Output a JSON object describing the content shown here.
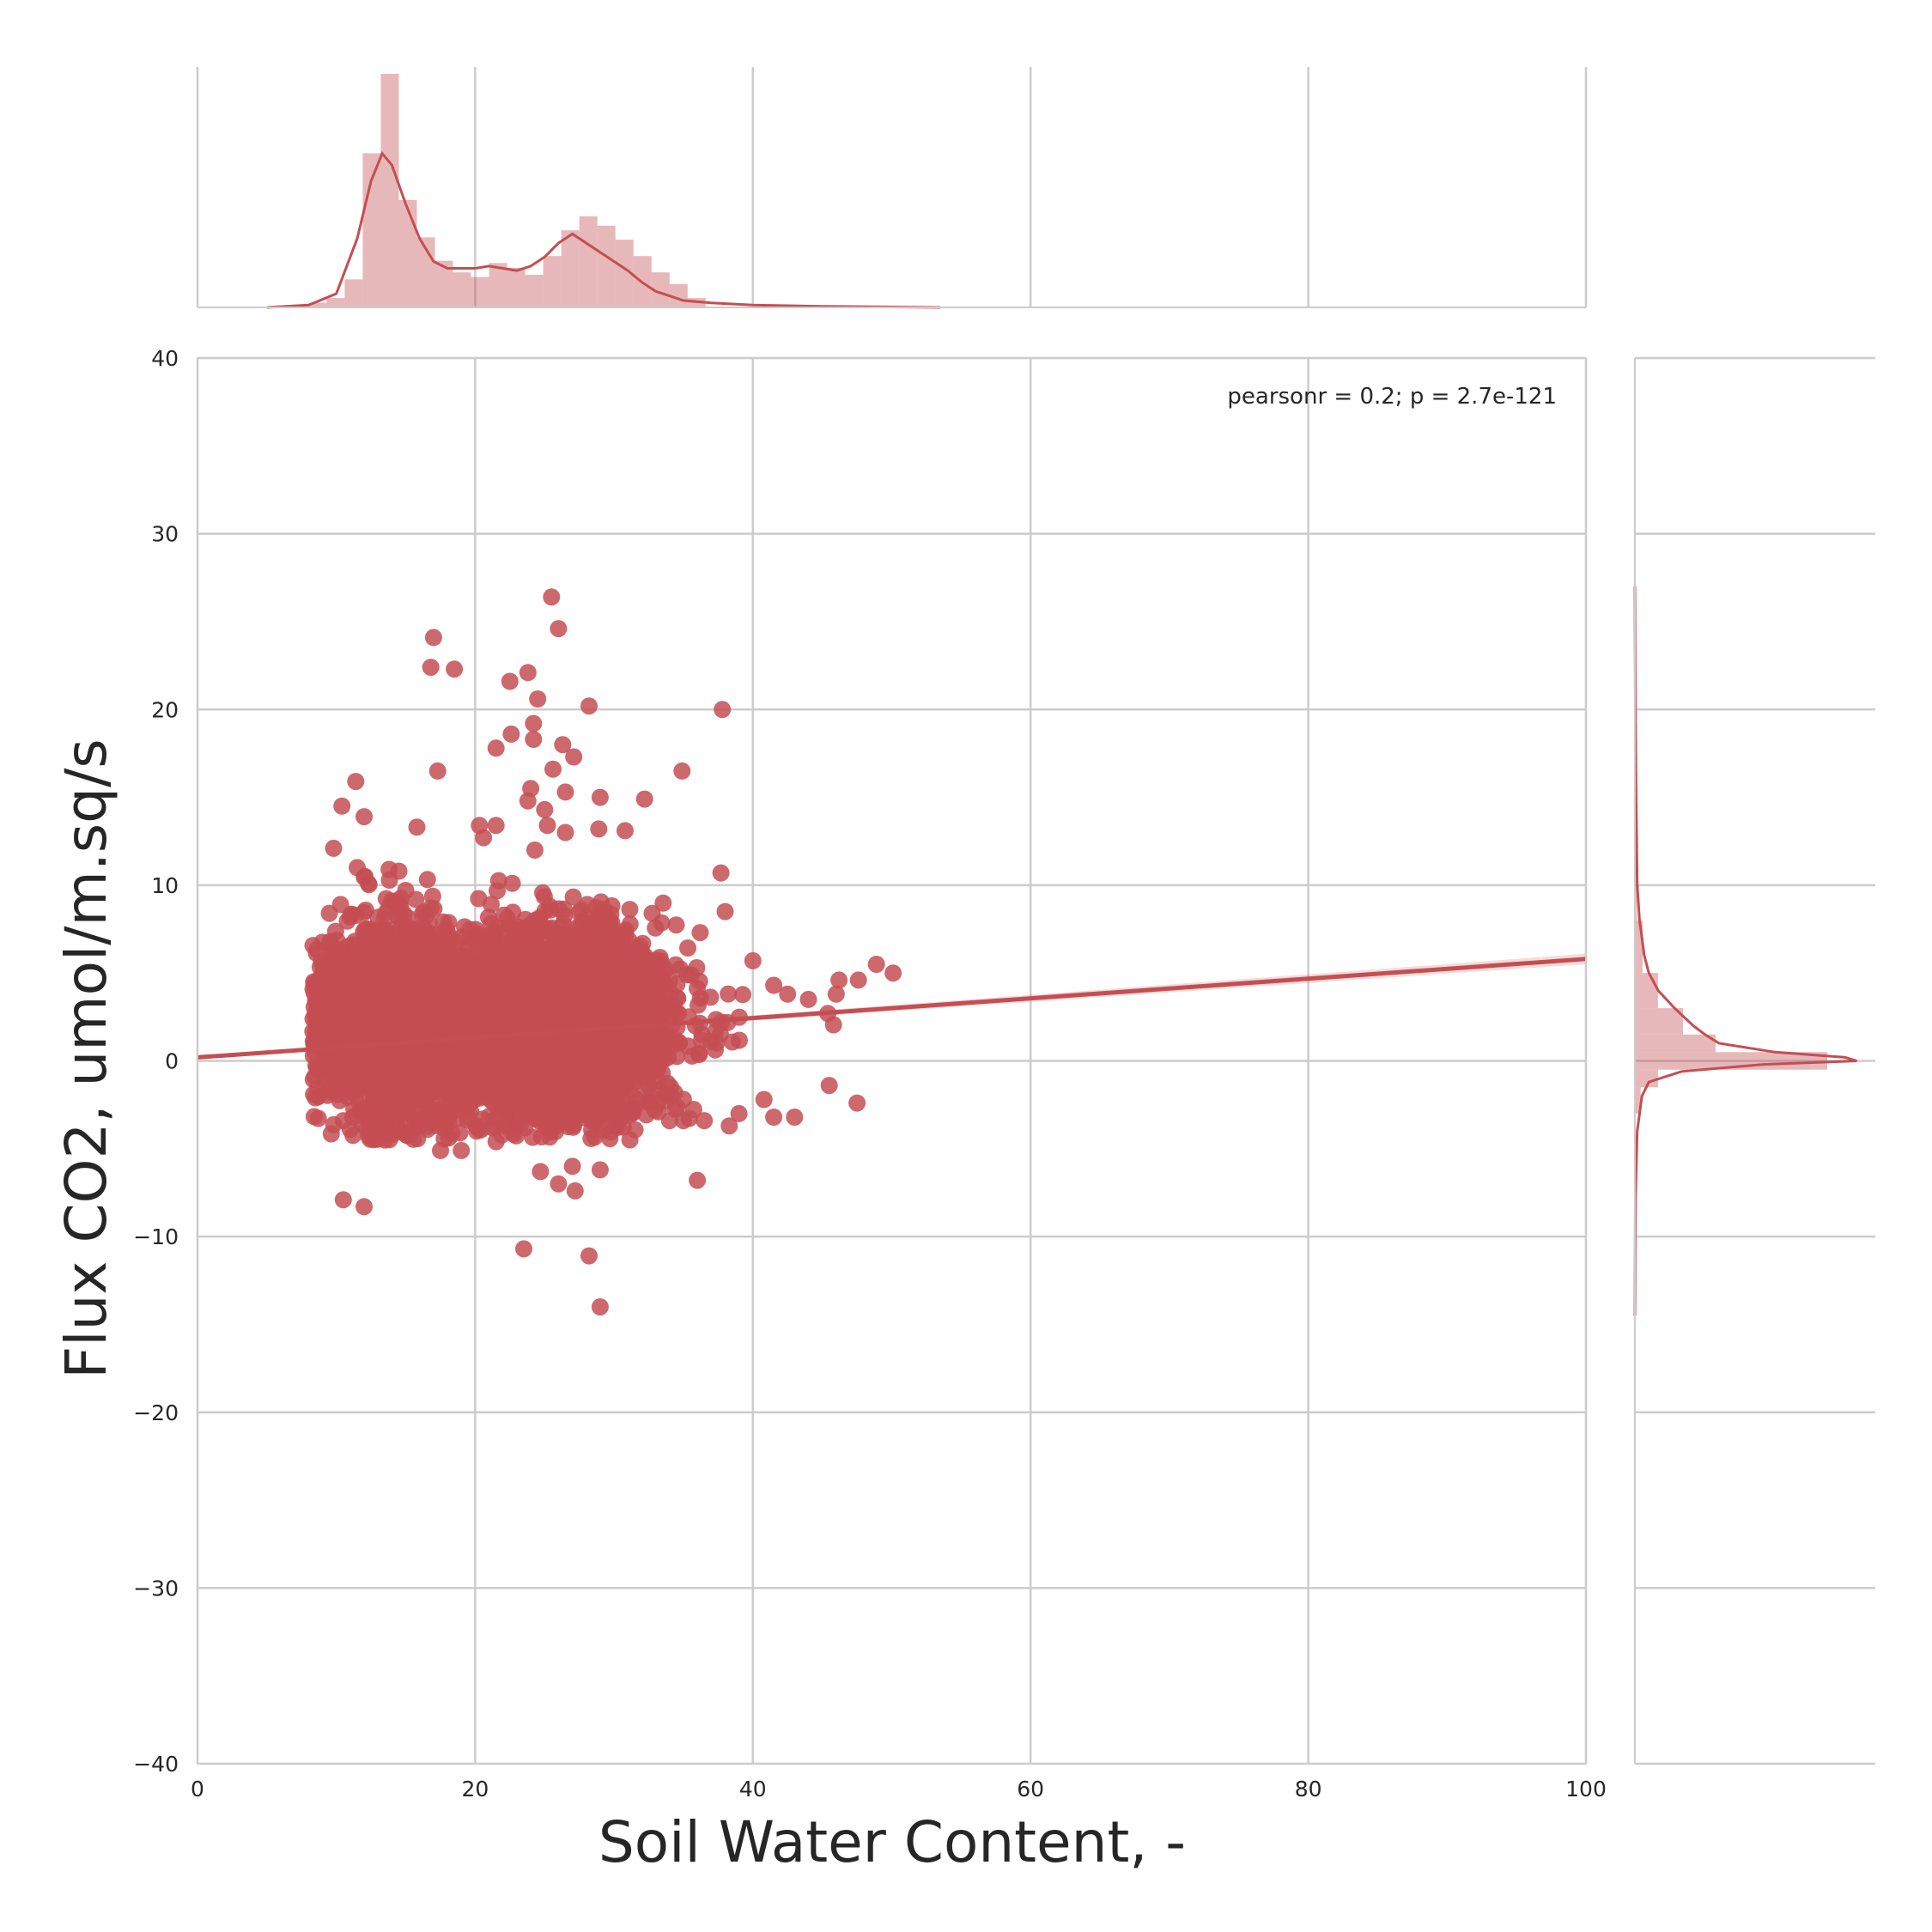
{
  "chart_data": {
    "type": "scatter",
    "subtype": "jointplot-regression",
    "xlabel": "Soil Water Content, -",
    "ylabel": "Flux CO2, umol/m.sq/s",
    "xlim": [
      0,
      100
    ],
    "ylim": [
      -40,
      40
    ],
    "xticks": [
      "0",
      "20",
      "40",
      "60",
      "80",
      "100"
    ],
    "yticks": [
      "−40",
      "−30",
      "−20",
      "−10",
      "0",
      "10",
      "20",
      "30",
      "40"
    ],
    "grid": true,
    "annotation": "pearsonr = 0.2; p = 2.7e-121",
    "color": "#c44e52",
    "regression": {
      "x": [
        0,
        100
      ],
      "y": [
        0.2,
        5.8
      ]
    },
    "outliers": [
      [
        25.5,
        26.4
      ],
      [
        26.0,
        24.6
      ],
      [
        17.0,
        24.1
      ],
      [
        16.8,
        22.4
      ],
      [
        18.5,
        22.3
      ],
      [
        22.5,
        21.6
      ],
      [
        23.8,
        22.1
      ],
      [
        24.5,
        20.6
      ],
      [
        28.2,
        20.2
      ],
      [
        37.8,
        20.0
      ],
      [
        24.2,
        19.2
      ],
      [
        22.6,
        18.6
      ],
      [
        21.5,
        17.8
      ],
      [
        24.2,
        18.3
      ],
      [
        26.3,
        18.0
      ],
      [
        27.1,
        17.3
      ],
      [
        25.6,
        16.6
      ],
      [
        17.3,
        16.5
      ],
      [
        34.9,
        16.5
      ],
      [
        11.4,
        15.9
      ],
      [
        24.0,
        15.5
      ],
      [
        26.5,
        15.3
      ],
      [
        29.0,
        15.0
      ],
      [
        32.2,
        14.9
      ],
      [
        10.4,
        14.5
      ],
      [
        23.8,
        14.8
      ],
      [
        25.0,
        14.3
      ],
      [
        12.0,
        13.9
      ],
      [
        15.8,
        13.3
      ],
      [
        20.3,
        13.4
      ],
      [
        21.5,
        13.4
      ],
      [
        25.2,
        13.4
      ],
      [
        26.5,
        13.0
      ],
      [
        28.9,
        13.2
      ],
      [
        30.8,
        13.1
      ],
      [
        20.6,
        12.7
      ],
      [
        9.8,
        12.1
      ],
      [
        24.3,
        12.0
      ],
      [
        38.0,
        8.5
      ],
      [
        37.7,
        10.7
      ],
      [
        36.2,
        7.3
      ],
      [
        11.5,
        11.0
      ],
      [
        12.3,
        10.1
      ],
      [
        14.5,
        10.8
      ],
      [
        15.0,
        9.7
      ],
      [
        13.8,
        10.9
      ],
      [
        40.0,
        5.7
      ],
      [
        41.5,
        4.3
      ],
      [
        42.5,
        3.8
      ],
      [
        44.0,
        3.5
      ],
      [
        46.0,
        3.8
      ],
      [
        47.6,
        4.6
      ],
      [
        48.9,
        5.5
      ],
      [
        50.1,
        5.0
      ],
      [
        46.2,
        4.6
      ],
      [
        45.4,
        2.7
      ],
      [
        45.5,
        -1.4
      ],
      [
        47.5,
        -2.4
      ],
      [
        43.0,
        -3.2
      ],
      [
        41.5,
        -3.2
      ],
      [
        40.8,
        -2.2
      ],
      [
        39.0,
        -3.0
      ],
      [
        38.3,
        -3.7
      ],
      [
        36.0,
        -6.8
      ],
      [
        35.0,
        -3.4
      ],
      [
        34.0,
        -3.4
      ],
      [
        36.5,
        -3.4
      ],
      [
        33.2,
        -2.9
      ],
      [
        29.0,
        -6.2
      ],
      [
        27.0,
        -6.0
      ],
      [
        27.2,
        -7.4
      ],
      [
        26.0,
        -7.0
      ],
      [
        24.7,
        -6.3
      ],
      [
        23.5,
        -10.7
      ],
      [
        28.2,
        -11.1
      ],
      [
        29.0,
        -14.0
      ],
      [
        10.5,
        -7.9
      ],
      [
        12.0,
        -8.3
      ],
      [
        13.5,
        -4.5
      ],
      [
        17.5,
        -5.1
      ],
      [
        19.0,
        -5.1
      ],
      [
        21.5,
        -4.6
      ],
      [
        11.0,
        -3.9
      ],
      [
        10.5,
        -3.4
      ],
      [
        12.2,
        -2.6
      ],
      [
        8.5,
        -2.1
      ],
      [
        9.0,
        3.8
      ],
      [
        8.7,
        1.8
      ],
      [
        9.5,
        8.4
      ],
      [
        10.3,
        8.9
      ],
      [
        11.0,
        8.2
      ]
    ],
    "blob": {
      "x_center": 22,
      "y_center": 2.2,
      "n": 6000
    },
    "top_histogram": {
      "bin_lefts": [
        8,
        9.3,
        10.6,
        11.9,
        13.2,
        14.5,
        15.8,
        17.1,
        18.4,
        19.7,
        21,
        22.3,
        23.6,
        24.9,
        26.2,
        27.5,
        28.8,
        30.1,
        31.4,
        32.7,
        34,
        35.3
      ],
      "heights": [
        0.02,
        0.04,
        0.12,
        0.66,
        1.0,
        0.46,
        0.3,
        0.2,
        0.15,
        0.13,
        0.19,
        0.17,
        0.14,
        0.22,
        0.33,
        0.39,
        0.35,
        0.29,
        0.22,
        0.15,
        0.1,
        0.04
      ],
      "bin_width": 1.3,
      "kde_x": [
        5,
        8,
        10,
        11.5,
        12.5,
        13.3,
        14,
        15,
        16,
        17,
        18,
        19,
        20,
        21,
        22,
        23,
        24,
        25,
        26,
        27,
        27.5,
        28,
        29,
        30,
        31,
        32,
        33,
        34,
        35,
        37,
        40,
        45,
        50,
        53.5
      ],
      "kde_y": [
        0,
        0.01,
        0.06,
        0.3,
        0.55,
        0.67,
        0.62,
        0.45,
        0.3,
        0.2,
        0.17,
        0.17,
        0.17,
        0.18,
        0.17,
        0.16,
        0.18,
        0.22,
        0.28,
        0.32,
        0.3,
        0.28,
        0.24,
        0.2,
        0.16,
        0.11,
        0.07,
        0.05,
        0.03,
        0.02,
        0.01,
        0.005,
        0.002,
        0
      ]
    },
    "right_histogram": {
      "bin_bottoms": [
        -3,
        -1.5,
        -0.5,
        0.5,
        1.5,
        3,
        5,
        8
      ],
      "heights": [
        0.03,
        0.12,
        1.0,
        0.42,
        0.25,
        0.12,
        0.04,
        0.01
      ],
      "kde_y": [
        -14.5,
        -8,
        -4,
        -2,
        -1.2,
        -0.6,
        -0.2,
        0,
        0.2,
        0.5,
        1,
        1.5,
        2,
        3,
        4,
        5,
        6,
        7,
        8,
        10,
        15,
        20,
        27
      ],
      "kde_x": [
        0,
        0.002,
        0.01,
        0.03,
        0.06,
        0.2,
        0.55,
        0.95,
        0.9,
        0.6,
        0.36,
        0.3,
        0.25,
        0.17,
        0.1,
        0.06,
        0.04,
        0.03,
        0.02,
        0.01,
        0.005,
        0.002,
        0
      ]
    }
  }
}
